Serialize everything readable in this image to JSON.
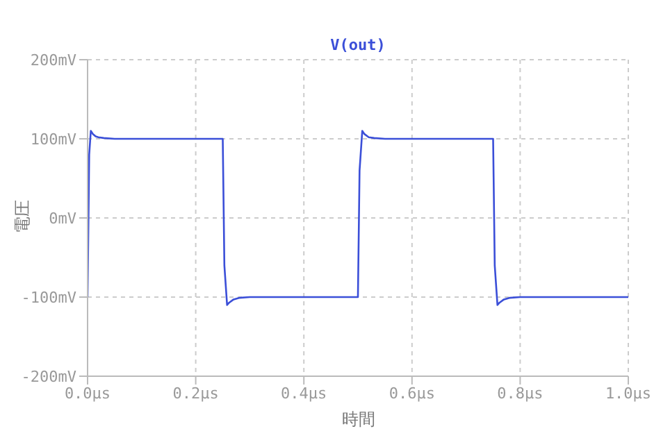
{
  "chart_data": {
    "type": "line",
    "title": "V(out)",
    "xlabel": "時間",
    "ylabel": "電圧",
    "series": [
      {
        "color": "#3b4fd8",
        "x": [
          0,
          0.003,
          0.006,
          0.01,
          0.015,
          0.02,
          0.03,
          0.05,
          0.25,
          0.253,
          0.258,
          0.262,
          0.27,
          0.28,
          0.3,
          0.5,
          0.503,
          0.508,
          0.512,
          0.52,
          0.53,
          0.55,
          0.75,
          0.753,
          0.758,
          0.762,
          0.77,
          0.78,
          0.8,
          1.0
        ],
        "values": [
          -100,
          80,
          110,
          106,
          103,
          102,
          101,
          100,
          100,
          -60,
          -110,
          -107,
          -103,
          -101,
          -100,
          -100,
          60,
          110,
          106,
          102,
          101,
          100,
          100,
          -60,
          -110,
          -107,
          -103,
          -101,
          -100,
          -100
        ]
      }
    ],
    "xlim": [
      0,
      1.0
    ],
    "ylim": [
      -200,
      200
    ],
    "xticks": [
      {
        "value": 0,
        "label": "0.0µs"
      },
      {
        "value": 0.2,
        "label": "0.2µs"
      },
      {
        "value": 0.4,
        "label": "0.4µs"
      },
      {
        "value": 0.6,
        "label": "0.6µs"
      },
      {
        "value": 0.8,
        "label": "0.8µs"
      },
      {
        "value": 1.0,
        "label": "1.0µs"
      }
    ],
    "yticks": [
      {
        "value": -200,
        "label": "-200mV"
      },
      {
        "value": -100,
        "label": "-100mV"
      },
      {
        "value": 0,
        "label": "0mV"
      },
      {
        "value": 100,
        "label": "100mV"
      },
      {
        "value": 200,
        "label": "200mV"
      }
    ],
    "grid": true,
    "line_style": "solid"
  }
}
